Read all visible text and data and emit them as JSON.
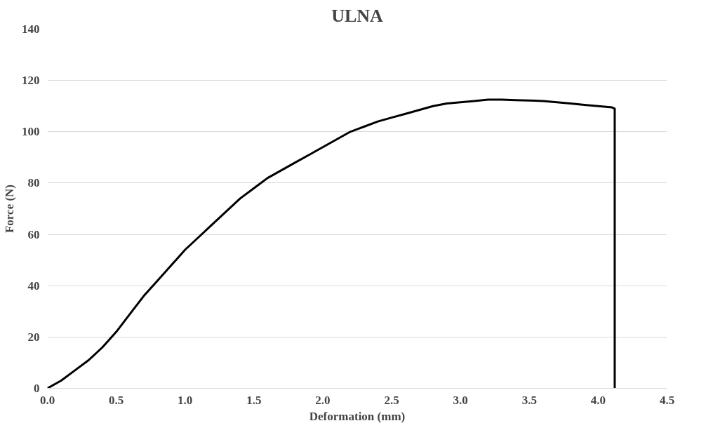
{
  "chart_data": {
    "type": "line",
    "title": "ULNA",
    "xlabel": "Deformation (mm)",
    "ylabel": "Force (N)",
    "series": [
      {
        "color": "#000000",
        "x": [
          0,
          0.1,
          0.2,
          0.3,
          0.4,
          0.5,
          0.6,
          0.7,
          0.8,
          0.9,
          1.0,
          1.1,
          1.2,
          1.3,
          1.4,
          1.5,
          1.6,
          1.7,
          1.8,
          1.9,
          2.0,
          2.1,
          2.2,
          2.3,
          2.4,
          2.5,
          2.6,
          2.7,
          2.8,
          2.9,
          3.0,
          3.1,
          3.2,
          3.3,
          3.4,
          3.5,
          3.6,
          3.7,
          3.8,
          3.9,
          4.0,
          4.1,
          4.12,
          4.12
        ],
        "values": [
          0,
          3,
          7,
          11,
          16,
          22,
          29,
          36,
          42,
          48,
          54,
          59,
          64,
          69,
          74,
          78,
          82,
          85,
          88,
          91,
          94,
          97,
          100,
          102,
          104,
          105.5,
          107,
          108.5,
          110,
          111,
          111.5,
          112,
          112.5,
          112.5,
          112.3,
          112.2,
          112,
          111.5,
          111,
          110.5,
          110,
          109.5,
          109,
          0
        ]
      }
    ],
    "xlim": [
      0,
      4.5
    ],
    "xticks": [
      {
        "value": 0,
        "label": "0.0"
      },
      {
        "value": 0.5,
        "label": "0.5"
      },
      {
        "value": 1,
        "label": "1.0"
      },
      {
        "value": 1.5,
        "label": "1.5"
      },
      {
        "value": 2,
        "label": "2.0"
      },
      {
        "value": 2.5,
        "label": "2.5"
      },
      {
        "value": 3,
        "label": "3.0"
      },
      {
        "value": 3.5,
        "label": "3.5"
      },
      {
        "value": 4,
        "label": "4.0"
      },
      {
        "value": 4.5,
        "label": "4.5"
      }
    ],
    "ylim": [
      0,
      140
    ],
    "yticks": [
      0,
      20,
      40,
      60,
      80,
      100,
      120,
      140
    ],
    "grid": "y",
    "marker": "none",
    "line_style": "solid"
  }
}
